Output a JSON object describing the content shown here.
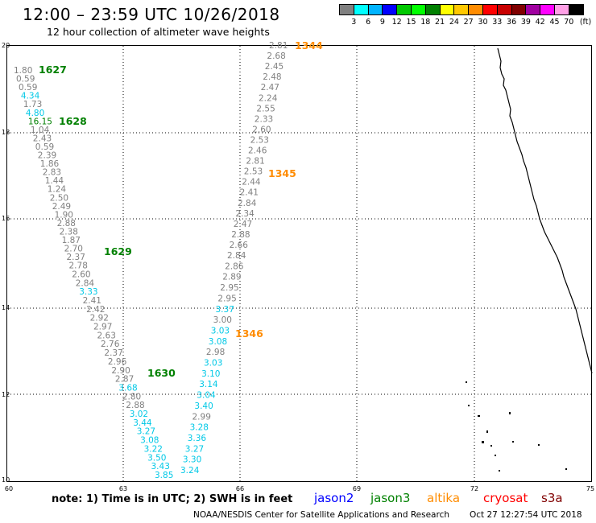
{
  "header": {
    "title": "12:00 – 23:59 UTC 10/26/2018",
    "subtitle": "12 hour collection of altimeter wave heights"
  },
  "legend": {
    "unit": "(ft)",
    "colors": [
      "#808080",
      "#00ffff",
      "#00b4ff",
      "#0000ff",
      "#00c800",
      "#00ff00",
      "#008000",
      "#ffff00",
      "#ffc800",
      "#ff8c00",
      "#ff0000",
      "#c80000",
      "#800000",
      "#a000a0",
      "#ff00ff",
      "#ffa0e6",
      "#000000"
    ],
    "labels": [
      "3",
      "6",
      "9",
      "12",
      "15",
      "18",
      "21",
      "24",
      "27",
      "30",
      "33",
      "36",
      "39",
      "42",
      "45",
      "70"
    ]
  },
  "axes": {
    "lat_labels": [
      "20",
      "18",
      "16",
      "14",
      "12",
      "10"
    ],
    "lon_labels": [
      "60",
      "63",
      "66",
      "69",
      "72",
      "75"
    ]
  },
  "passes": [
    {
      "id": "1344",
      "color": "#ff8c00"
    },
    {
      "id": "1345",
      "color": "#ff8c00"
    },
    {
      "id": "1346",
      "color": "#ff8c00"
    },
    {
      "id": "1627",
      "color": "#008000"
    },
    {
      "id": "1628",
      "color": "#008000"
    },
    {
      "id": "1629",
      "color": "#008000"
    },
    {
      "id": "1630",
      "color": "#008000"
    }
  ],
  "track_values": {
    "west": [
      {
        "v": "1.80",
        "c": "#808080"
      },
      {
        "v": "0.59",
        "c": "#808080"
      },
      {
        "v": "0.59",
        "c": "#808080"
      },
      {
        "v": "4.34",
        "c": "#00c8e6"
      },
      {
        "v": "1.73",
        "c": "#808080"
      },
      {
        "v": "4.80",
        "c": "#00c8e6"
      },
      {
        "v": "16.15",
        "c": "#008000"
      },
      {
        "v": "1.04",
        "c": "#808080"
      },
      {
        "v": "2.43",
        "c": "#808080"
      },
      {
        "v": "0.59",
        "c": "#808080"
      },
      {
        "v": "2.39",
        "c": "#808080"
      },
      {
        "v": "1.86",
        "c": "#808080"
      },
      {
        "v": "2.83",
        "c": "#808080"
      },
      {
        "v": "1.44",
        "c": "#808080"
      },
      {
        "v": "1.24",
        "c": "#808080"
      },
      {
        "v": "2.50",
        "c": "#808080"
      },
      {
        "v": "2.49",
        "c": "#808080"
      },
      {
        "v": "1.90",
        "c": "#808080"
      },
      {
        "v": "2.88",
        "c": "#808080"
      },
      {
        "v": "2.38",
        "c": "#808080"
      },
      {
        "v": "1.87",
        "c": "#808080"
      },
      {
        "v": "2.70",
        "c": "#808080"
      },
      {
        "v": "2.37",
        "c": "#808080"
      },
      {
        "v": "2.78",
        "c": "#808080"
      },
      {
        "v": "2.60",
        "c": "#808080"
      },
      {
        "v": "2.84",
        "c": "#808080"
      },
      {
        "v": "3.33",
        "c": "#00c8e6"
      },
      {
        "v": "2.41",
        "c": "#808080"
      },
      {
        "v": "2.42",
        "c": "#808080"
      },
      {
        "v": "2.92",
        "c": "#808080"
      },
      {
        "v": "2.97",
        "c": "#808080"
      },
      {
        "v": "2.63",
        "c": "#808080"
      },
      {
        "v": "2.76",
        "c": "#808080"
      },
      {
        "v": "2.37",
        "c": "#808080"
      },
      {
        "v": "2.96",
        "c": "#808080"
      },
      {
        "v": "2.90",
        "c": "#808080"
      },
      {
        "v": "2.87",
        "c": "#808080"
      },
      {
        "v": "3.68",
        "c": "#00c8e6"
      },
      {
        "v": "2.80",
        "c": "#808080"
      },
      {
        "v": "2.88",
        "c": "#808080"
      },
      {
        "v": "3.02",
        "c": "#00c8e6"
      },
      {
        "v": "3.44",
        "c": "#00c8e6"
      },
      {
        "v": "3.27",
        "c": "#00c8e6"
      },
      {
        "v": "3.08",
        "c": "#00c8e6"
      },
      {
        "v": "3.22",
        "c": "#00c8e6"
      },
      {
        "v": "3.50",
        "c": "#00c8e6"
      },
      {
        "v": "3.43",
        "c": "#00c8e6"
      },
      {
        "v": "3.85",
        "c": "#00c8e6"
      }
    ],
    "east": [
      {
        "v": "2.81",
        "c": "#808080"
      },
      {
        "v": "2.68",
        "c": "#808080"
      },
      {
        "v": "2.45",
        "c": "#808080"
      },
      {
        "v": "2.48",
        "c": "#808080"
      },
      {
        "v": "2.47",
        "c": "#808080"
      },
      {
        "v": "2.24",
        "c": "#808080"
      },
      {
        "v": "2.55",
        "c": "#808080"
      },
      {
        "v": "2.33",
        "c": "#808080"
      },
      {
        "v": "2.60",
        "c": "#808080"
      },
      {
        "v": "2.53",
        "c": "#808080"
      },
      {
        "v": "2.46",
        "c": "#808080"
      },
      {
        "v": "2.81",
        "c": "#808080"
      },
      {
        "v": "2.53",
        "c": "#808080"
      },
      {
        "v": "2.44",
        "c": "#808080"
      },
      {
        "v": "2.41",
        "c": "#808080"
      },
      {
        "v": "2.84",
        "c": "#808080"
      },
      {
        "v": "2.34",
        "c": "#808080"
      },
      {
        "v": "2.47",
        "c": "#808080"
      },
      {
        "v": "2.88",
        "c": "#808080"
      },
      {
        "v": "2.66",
        "c": "#808080"
      },
      {
        "v": "2.84",
        "c": "#808080"
      },
      {
        "v": "2.86",
        "c": "#808080"
      },
      {
        "v": "2.89",
        "c": "#808080"
      },
      {
        "v": "2.95",
        "c": "#808080"
      },
      {
        "v": "2.95",
        "c": "#808080"
      },
      {
        "v": "3.37",
        "c": "#00c8e6"
      },
      {
        "v": "3.00",
        "c": "#808080"
      },
      {
        "v": "3.03",
        "c": "#00c8e6"
      },
      {
        "v": "3.08",
        "c": "#00c8e6"
      },
      {
        "v": "2.98",
        "c": "#808080"
      },
      {
        "v": "3.03",
        "c": "#00c8e6"
      },
      {
        "v": "3.10",
        "c": "#00c8e6"
      },
      {
        "v": "3.14",
        "c": "#00c8e6"
      },
      {
        "v": "3.04",
        "c": "#00c8e6"
      },
      {
        "v": "3.40",
        "c": "#00c8e6"
      },
      {
        "v": "2.99",
        "c": "#808080"
      },
      {
        "v": "3.28",
        "c": "#00c8e6"
      },
      {
        "v": "3.36",
        "c": "#00c8e6"
      },
      {
        "v": "3.27",
        "c": "#00c8e6"
      },
      {
        "v": "3.30",
        "c": "#00c8e6"
      },
      {
        "v": "3.24",
        "c": "#00c8e6"
      }
    ]
  },
  "footer": {
    "note": "note:  1) Time is in UTC;  2) SWH is in feet",
    "satellites": [
      {
        "name": "jason2",
        "color": "#0000ff"
      },
      {
        "name": "jason3",
        "color": "#008000"
      },
      {
        "name": "altika",
        "color": "#ff8c00"
      },
      {
        "name": "cryosat",
        "color": "#ff0000"
      },
      {
        "name": "s3a",
        "color": "#800000"
      }
    ],
    "credit": "NOAA/NESDIS Center for Satellite Applications and Research",
    "timestamp": "Oct 27 12:27:54 UTC 2018"
  }
}
